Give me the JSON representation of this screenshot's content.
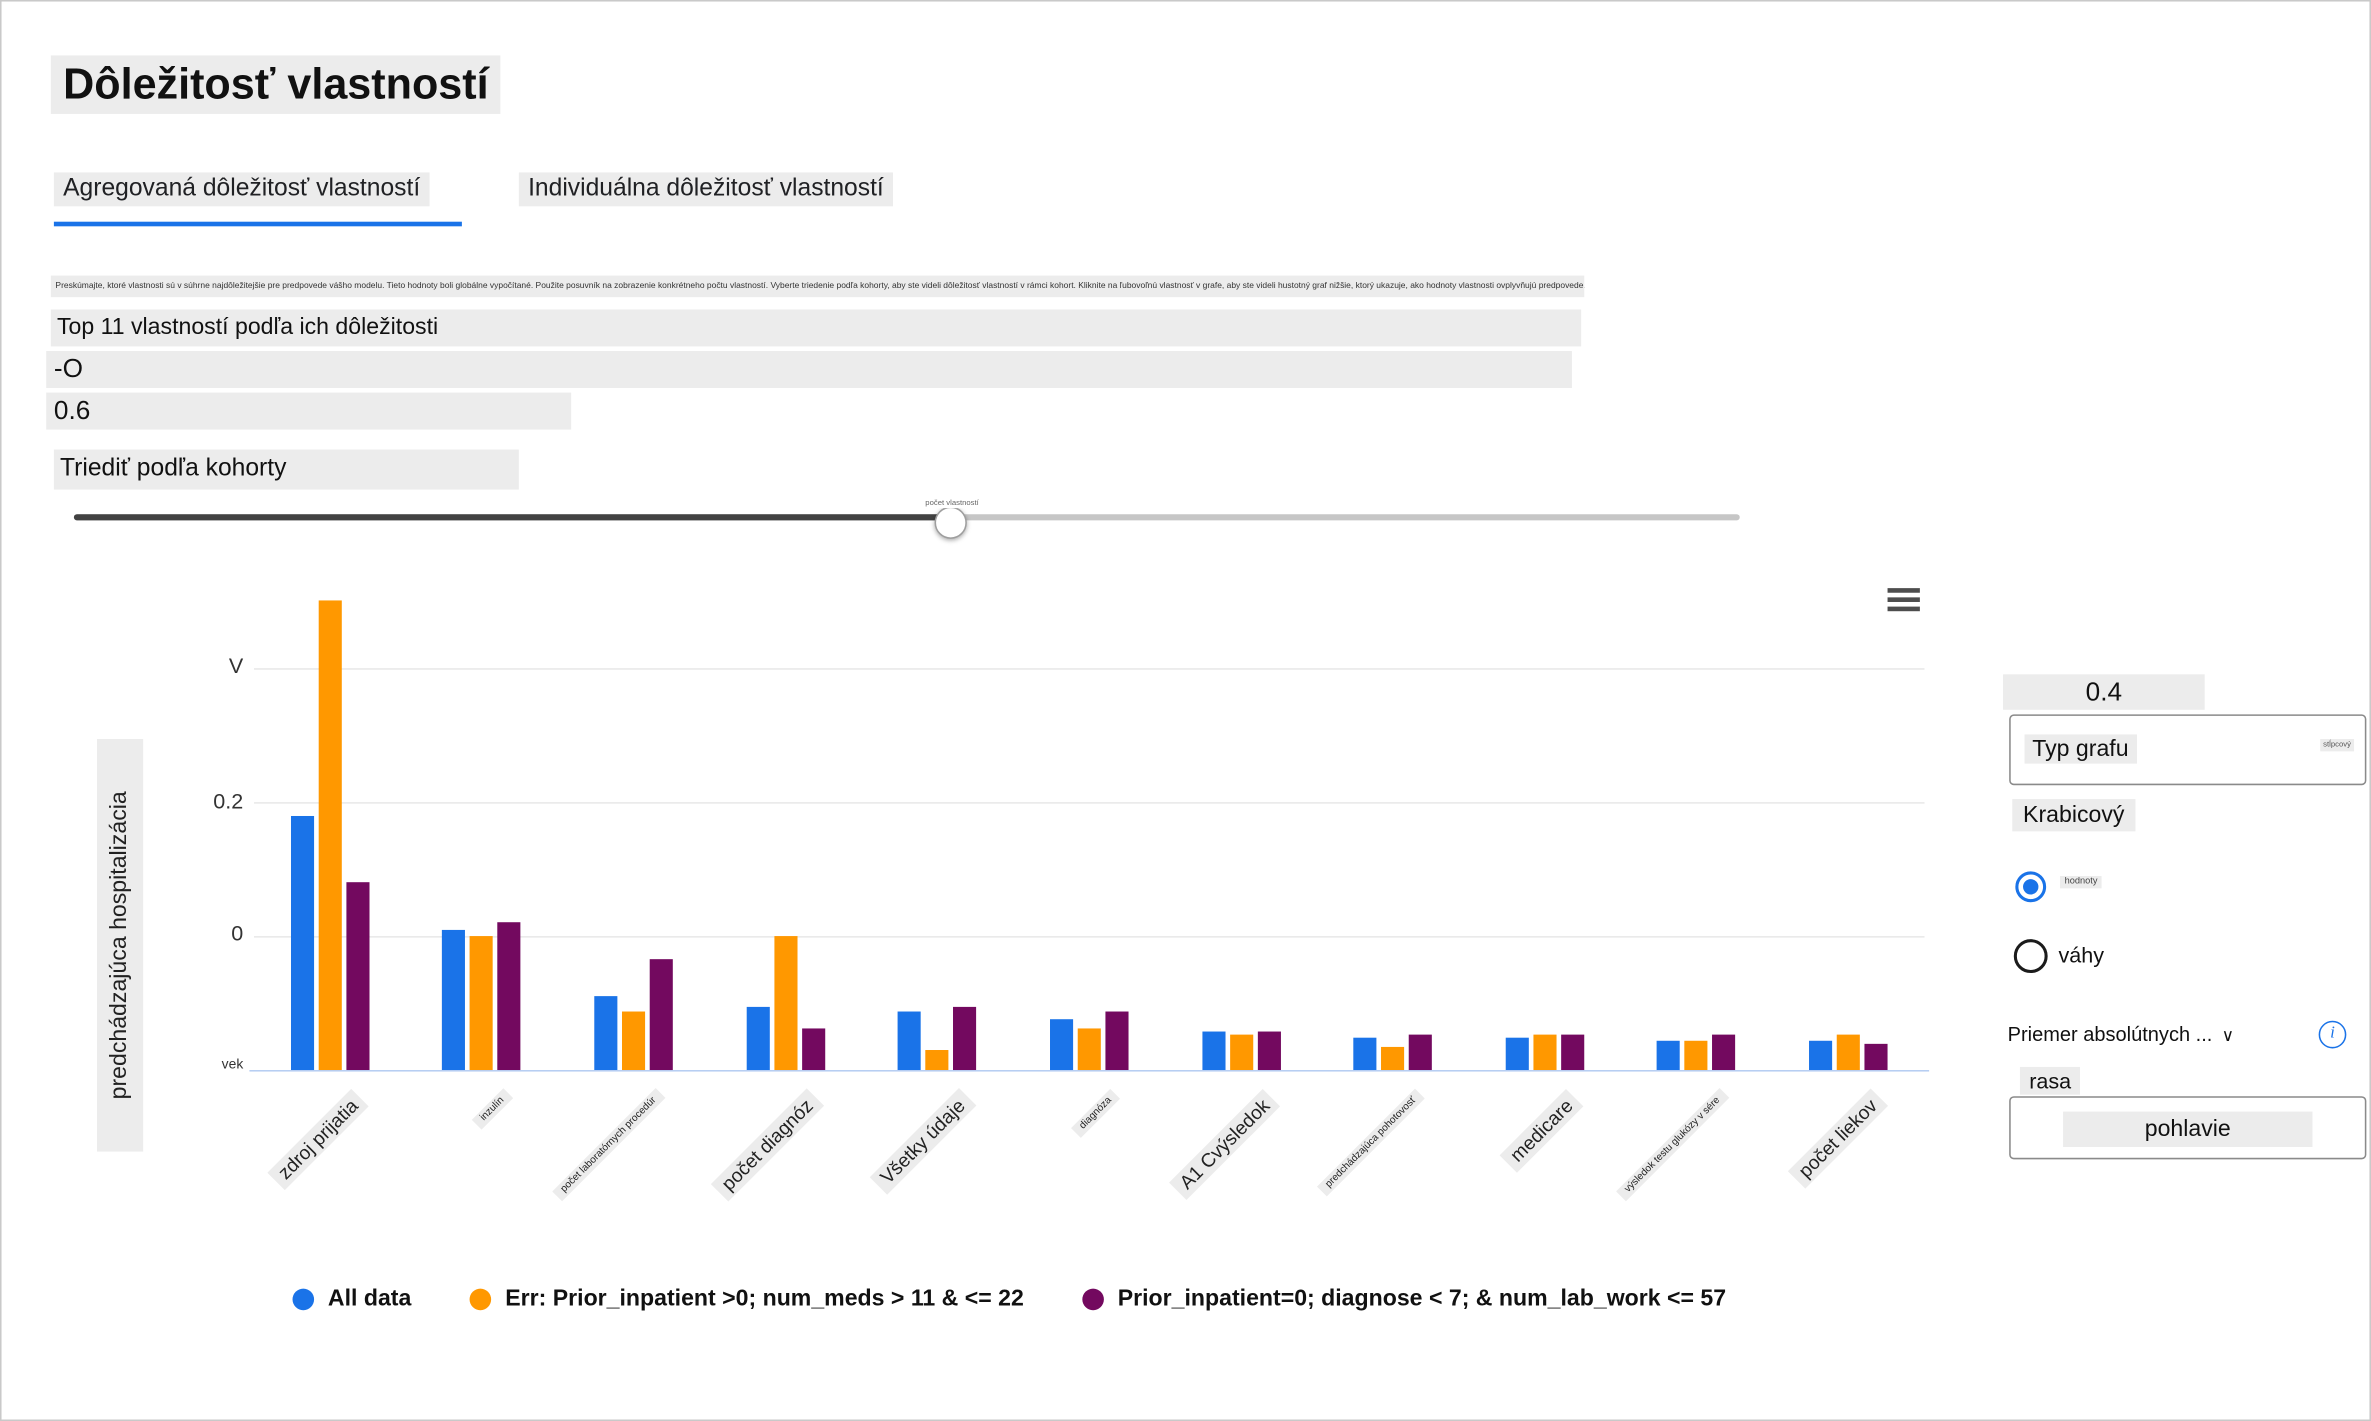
{
  "page": {
    "title": "Dôležitosť vlastností",
    "tabs": [
      {
        "label": "Agregovaná dôležitosť vlastností",
        "active": true
      },
      {
        "label": "Individuálna dôležitosť vlastností",
        "active": false
      }
    ],
    "description": "Preskúmajte, ktoré vlastnosti sú v súhrne najdôležitejšie pre predpovede vášho modelu. Tieto hodnoty boli globálne vypočítané. Použite posuvník na zobrazenie konkrétneho počtu vlastností. Vyberte triedenie podľa kohorty, aby ste videli dôležitosť vlastností v rámci kohort. Kliknite na ľubovoľnú vlastnosť v grafe, aby ste videli hustotný graf nižšie, ktorý ukazuje, ako hodnoty vlastnosti ovplyvňujú predpovede.",
    "section_heading": "Top 11 vlastností podľa ich dôležitosti",
    "range_start_label": "-O",
    "range_value_label": "0.6",
    "sort_by_cohort_label": "Triediť podľa kohorty",
    "slider_bubble": "počet vlastností"
  },
  "chart_data": {
    "type": "bar",
    "title": "Top 11 vlastností podľa ich dôležitosti",
    "xlabel": "",
    "ylabel": "predchádzajúca hospitalizácia",
    "y_ticks": [
      "vek",
      "0",
      "0.2",
      "V"
    ],
    "ylim": [
      0,
      0.72
    ],
    "grid": true,
    "x_tick_rotation": -45,
    "legend_position": "bottom",
    "categories": [
      "zdroj prijatia",
      "inzulín",
      "počet laboratórnych procedúr",
      "počet diagnóz",
      "Všetky údaje",
      "diagnóza",
      "A1 Cvýsledok",
      "predchádzajúca pohotovosť",
      "medicare",
      "výsledok testu glukózy v sére",
      "počet liekov"
    ],
    "category_small_flags": [
      false,
      true,
      true,
      false,
      false,
      true,
      false,
      true,
      false,
      true,
      false
    ],
    "series": [
      {
        "name": "All data",
        "color": "#1a73e8",
        "values": [
          0.38,
          0.21,
          0.11,
          0.095,
          0.088,
          0.077,
          0.058,
          0.049,
          0.049,
          0.044,
          0.044
        ]
      },
      {
        "name": "Err: Prior_inpatient >0; num_meds > 11 & <= 22",
        "color": "#ff9800",
        "values": [
          0.7,
          0.2,
          0.088,
          0.2,
          0.03,
          0.062,
          0.053,
          0.035,
          0.053,
          0.044,
          0.053
        ]
      },
      {
        "name": "Prior_inpatient=0; diagnose < 7; & num_lab_work <= 57",
        "color": "#73095f",
        "values": [
          0.28,
          0.22,
          0.165,
          0.062,
          0.095,
          0.088,
          0.058,
          0.053,
          0.053,
          0.053,
          0.04
        ]
      }
    ]
  },
  "right_panel": {
    "value_04": "0.4",
    "chart_type_label": "Typ grafu",
    "chart_type_value": "stĺpcový",
    "box_option_label": "Krabicový",
    "radio_options": [
      {
        "label": "hodnoty",
        "selected": true
      },
      {
        "label": "váhy",
        "selected": false
      }
    ],
    "mean_abs_label": "Priemer absolútnych ...",
    "mean_caret": "∨",
    "info_glyph": "i",
    "race_label": "rasa",
    "gender_button_label": "pohlavie"
  }
}
